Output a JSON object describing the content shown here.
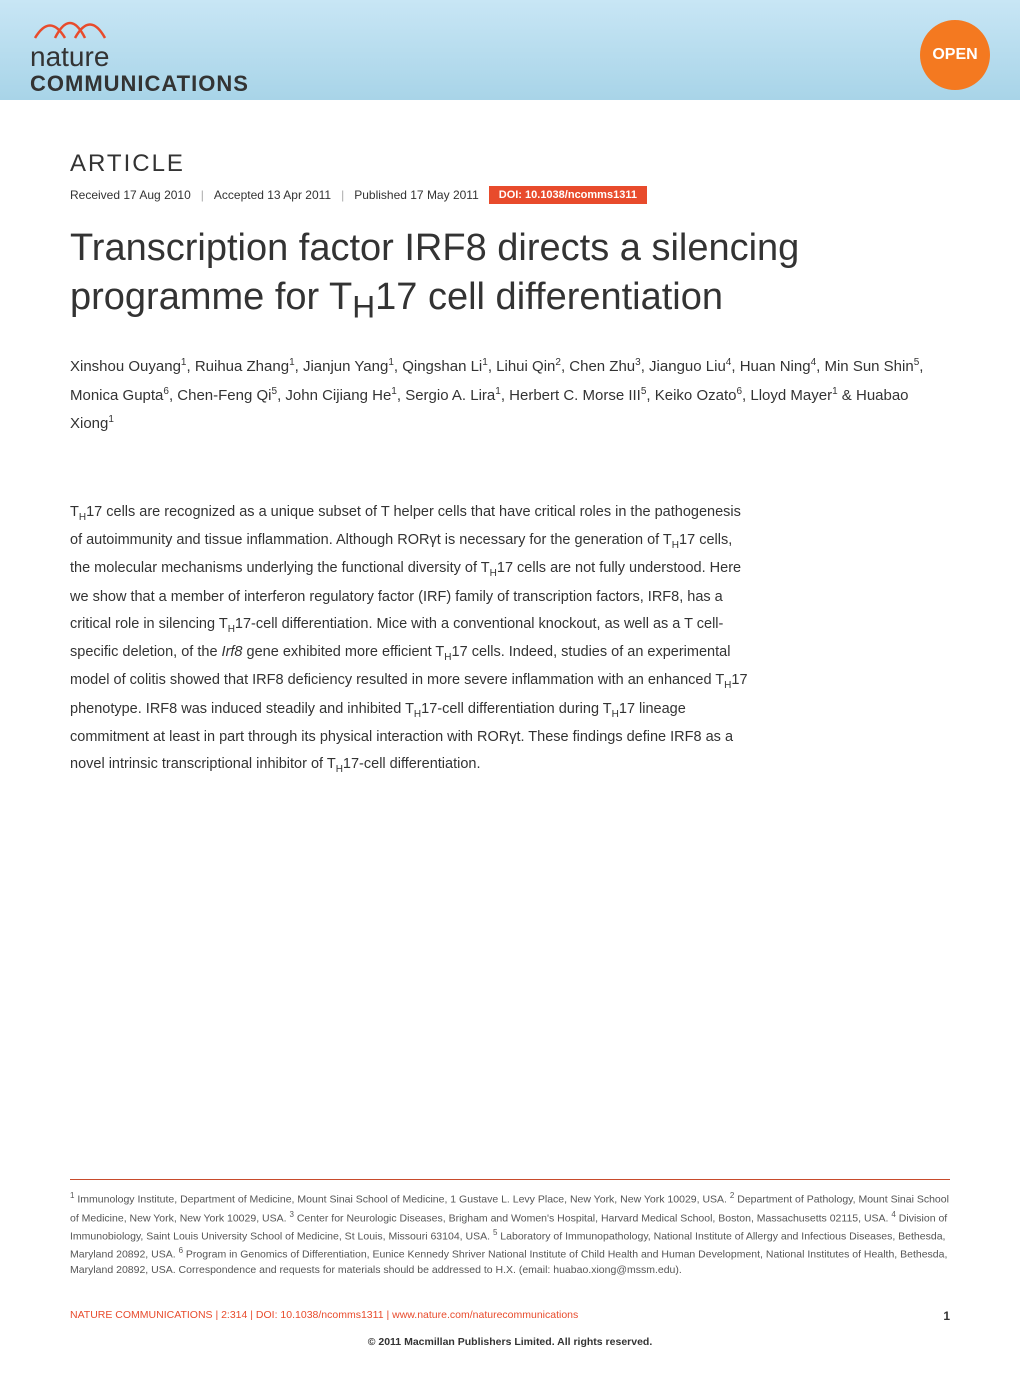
{
  "header": {
    "logo_line1": "nature",
    "logo_line2": "COMMUNICATIONS",
    "open_badge": "OPEN",
    "banner_gradient_top": "#c8e6f5",
    "banner_gradient_bottom": "#a8d4e8",
    "badge_color": "#f47920"
  },
  "article": {
    "label": "ARTICLE",
    "received": "Received 17 Aug 2010",
    "accepted": "Accepted 13 Apr 2011",
    "published": "Published 17 May 2011",
    "doi": "DOI: 10.1038/ncomms1311",
    "doi_bg_color": "#e84b2c"
  },
  "title": "Transcription factor IRF8 directs a silencing programme for TₕH17 cell differentiation",
  "title_html": "Transcription factor IRF8 directs a silencing programme for T<sub>H</sub>17 cell differentiation",
  "authors_html": "Xinshou Ouyang<sup>1</sup>, Ruihua Zhang<sup>1</sup>, Jianjun Yang<sup>1</sup>, Qingshan Li<sup>1</sup>, Lihui Qin<sup>2</sup>, Chen Zhu<sup>3</sup>, Jianguo Liu<sup>4</sup>, Huan Ning<sup>4</sup>, Min Sun Shin<sup>5</sup>, Monica Gupta<sup>6</sup>, Chen-Feng Qi<sup>5</sup>, John Cijiang He<sup>1</sup>, Sergio A. Lira<sup>1</sup>, Herbert C. Morse III<sup>5</sup>, Keiko Ozato<sup>6</sup>, Lloyd Mayer<sup>1</sup> & Huabao Xiong<sup>1</sup>",
  "abstract_html": "T<sub>H</sub>17 cells are recognized as a unique subset of T helper cells that have critical roles in the pathogenesis of autoimmunity and tissue inflammation. Although RORγt is necessary for the generation of T<sub>H</sub>17 cells, the molecular mechanisms underlying the functional diversity of T<sub>H</sub>17 cells are not fully understood. Here we show that a member of interferon regulatory factor (IRF) family of transcription factors, IRF8, has a critical role in silencing T<sub>H</sub>17-cell differentiation. Mice with a conventional knockout, as well as a T cell-specific deletion, of the <i>Irf8</i> gene exhibited more efficient T<sub>H</sub>17 cells. Indeed, studies of an experimental model of colitis showed that IRF8 deficiency resulted in more severe inflammation with an enhanced T<sub>H</sub>17 phenotype. IRF8 was induced steadily and inhibited T<sub>H</sub>17-cell differentiation during T<sub>H</sub>17 lineage commitment at least in part through its physical interaction with RORγt. These findings define IRF8 as a novel intrinsic transcriptional inhibitor of T<sub>H</sub>17-cell differentiation.",
  "affiliations_html": "<sup>1</sup> Immunology Institute, Department of Medicine, Mount Sinai School of Medicine, 1 Gustave L. Levy Place, New York, New York 10029, USA. <sup>2</sup> Department of Pathology, Mount Sinai School of Medicine, New York, New York 10029, USA. <sup>3</sup> Center for Neurologic Diseases, Brigham and Women's Hospital, Harvard Medical School, Boston, Massachusetts 02115, USA. <sup>4</sup> Division of Immunobiology, Saint Louis University School of Medicine, St Louis, Missouri 63104, USA. <sup>5</sup> Laboratory of Immunopathology, National Institute of Allergy and Infectious Diseases, Bethesda, Maryland 20892, USA. <sup>6</sup> Program in Genomics of Differentiation, Eunice Kennedy Shriver National Institute of Child Health and Human Development, National Institutes of Health, Bethesda, Maryland 20892, USA. Correspondence and requests for materials should be addressed to H.X. (email: huabao.xiong@mssm.edu).",
  "footer": {
    "citation": "NATURE COMMUNICATIONS | 2:314 | DOI: 10.1038/ncomms1311 | www.nature.com/naturecommunications",
    "page_number": "1",
    "copyright": "© 2011 Macmillan Publishers Limited. All rights reserved."
  },
  "colors": {
    "accent_orange": "#e84b2c",
    "text_main": "#333333",
    "text_muted": "#555555",
    "divider": "#c84b2c"
  },
  "typography": {
    "title_fontsize": 38,
    "body_fontsize": 14.5,
    "affiliation_fontsize": 10.5,
    "author_fontsize": 15,
    "label_fontsize": 24
  }
}
